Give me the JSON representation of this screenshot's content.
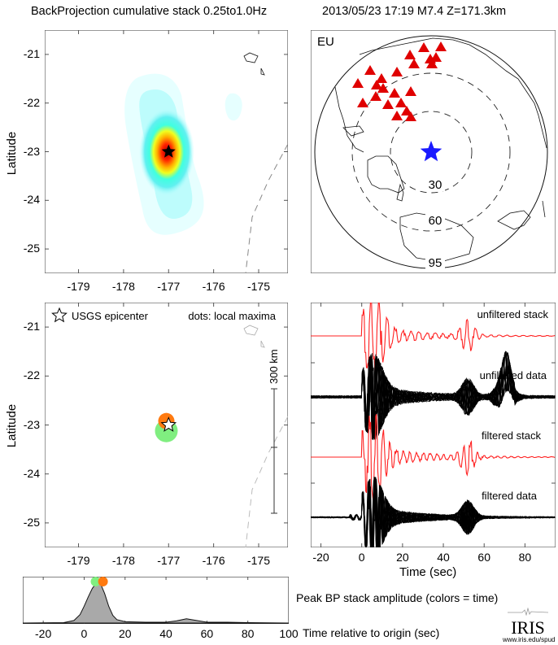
{
  "header": {
    "title_left": "BackProjection cumulative stack 0.25to1.0Hz",
    "title_right": "2013/05/23 17:19  M7.4  Z=171.3km"
  },
  "colors": {
    "stack_trace": "#ff2020",
    "data_trace": "#000000",
    "station": "#e00000",
    "epicenter_star": "#1a1aff",
    "early_max": "#80ee80",
    "late_max": "#ff7a10",
    "peak_fill": "#a9a9a9"
  },
  "chart_data": [
    {
      "name": "bp-cumulative-map",
      "type": "heatmap",
      "title": "BackProjection cumulative stack 0.25to1.0Hz",
      "xlabel": "",
      "ylabel": "Latitude",
      "x_ticks": [
        "-179",
        "-178",
        "-177",
        "-176",
        "-175"
      ],
      "y_ticks": [
        "-21",
        "-22",
        "-23",
        "-24",
        "-25"
      ],
      "xlim": [
        -179.75,
        -174.35
      ],
      "ylim": [
        -25.5,
        -20.5
      ],
      "peak": {
        "lon": -177.0,
        "lat": -23.0
      },
      "epicenter": {
        "lon": -177.0,
        "lat": -23.0
      }
    },
    {
      "name": "station-map",
      "type": "scatter",
      "label": "EU",
      "ring_labels": [
        "30",
        "60",
        "95"
      ],
      "station_count": 22,
      "epicenter": {
        "lon": -177.0,
        "lat": -23.0
      }
    },
    {
      "name": "local-maxima-map",
      "type": "scatter",
      "ylabel": "Latitude",
      "x_ticks": [
        "-179",
        "-178",
        "-177",
        "-176",
        "-175"
      ],
      "y_ticks": [
        "-21",
        "-22",
        "-23",
        "-24",
        "-25"
      ],
      "xlim": [
        -179.75,
        -174.35
      ],
      "ylim": [
        -25.5,
        -20.5
      ],
      "legend_star": "USGS epicenter",
      "legend_dots": "dots: local maxima",
      "scale_bar": "300 km",
      "points": [
        {
          "lon": -177.05,
          "lat": -23.12,
          "time": 5.6,
          "color": "green"
        },
        {
          "lon": -177.05,
          "lat": -22.92,
          "time": 9.2,
          "color": "orange"
        }
      ],
      "epicenter": {
        "lon": -177.0,
        "lat": -23.0
      }
    },
    {
      "name": "seismograms",
      "type": "line",
      "xlabel": "Time (sec)",
      "x_ticks": [
        "-20",
        "0",
        "20",
        "40",
        "60",
        "80"
      ],
      "xlim": [
        -25,
        95
      ],
      "series": [
        {
          "name": "unfiltered stack"
        },
        {
          "name": "unfiltered data"
        },
        {
          "name": "filtered stack"
        },
        {
          "name": "filtered data"
        }
      ]
    },
    {
      "name": "peak-amplitude",
      "type": "area",
      "xlabel": "Time relative to origin (sec)",
      "ylabel_right": "Peak BP stack amplitude (colors = time)",
      "x_ticks": [
        "-20",
        "0",
        "20",
        "40",
        "60",
        "80",
        "100"
      ],
      "xlim": [
        -30,
        100
      ],
      "ylim": [
        0,
        1
      ],
      "x": [
        -30,
        -10,
        -5,
        -2,
        0,
        2,
        4,
        6,
        8,
        10,
        12,
        14,
        16,
        20,
        30,
        40,
        45,
        50,
        55,
        60,
        70,
        80,
        100
      ],
      "y": [
        0.0,
        0.01,
        0.06,
        0.2,
        0.4,
        0.62,
        0.82,
        0.95,
        0.93,
        0.7,
        0.4,
        0.18,
        0.08,
        0.03,
        0.02,
        0.02,
        0.05,
        0.1,
        0.06,
        0.02,
        0.02,
        0.01,
        0.0
      ],
      "maxima": [
        {
          "time": 5.6,
          "color": "green"
        },
        {
          "time": 9.2,
          "color": "orange"
        }
      ]
    }
  ],
  "logo": {
    "name": "IRIS",
    "url_text": "www.iris.edu/spud"
  }
}
